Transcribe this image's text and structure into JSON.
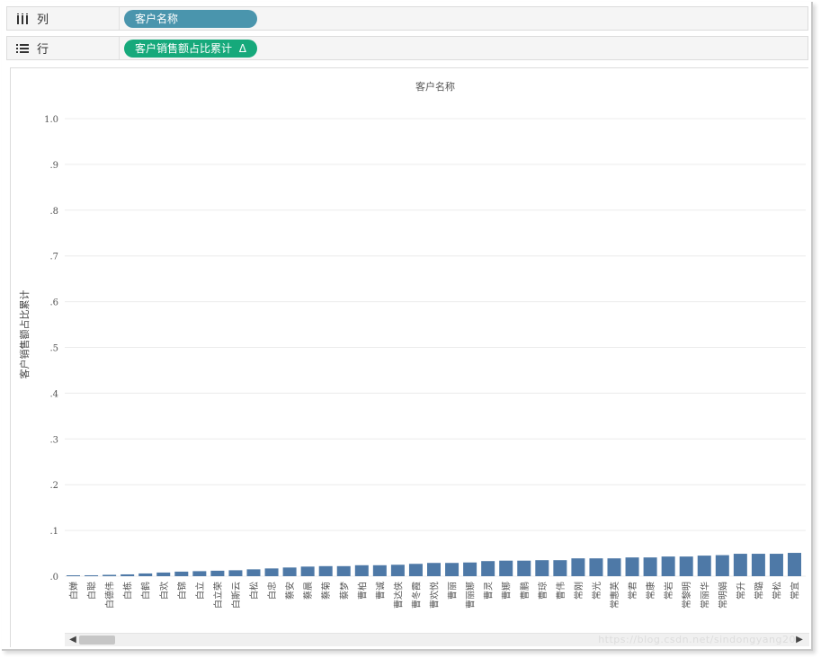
{
  "shelves": {
    "columns": {
      "label": "列",
      "icon": "columns-icon",
      "pill": "客户名称",
      "pill_color": "#4a95ad"
    },
    "rows": {
      "label": "行",
      "icon": "rows-icon",
      "pill": "客户销售额占比累计",
      "pill_color": "#16a97b",
      "pill_flag": "Δ"
    }
  },
  "watermark": "https://blog.csdn.net/sindongyang20",
  "chart_data": {
    "type": "bar",
    "title": "客户名称",
    "xlabel": "",
    "ylabel": "客户销售额占比累计",
    "ylim": [
      0,
      1.0
    ],
    "yticks": [
      {
        "value": 1.0,
        "label": "1.0"
      },
      {
        "value": 0.9,
        "label": ".9"
      },
      {
        "value": 0.8,
        "label": ".8"
      },
      {
        "value": 0.7,
        "label": ".7"
      },
      {
        "value": 0.6,
        "label": ".6"
      },
      {
        "value": 0.5,
        "label": ".5"
      },
      {
        "value": 0.4,
        "label": ".4"
      },
      {
        "value": 0.3,
        "label": ".3"
      },
      {
        "value": 0.2,
        "label": ".2"
      },
      {
        "value": 0.1,
        "label": ".1"
      },
      {
        "value": 0.0,
        "label": ".0"
      }
    ],
    "bar_color": "#4e79a7",
    "grid": true,
    "categories": [
      "白婵",
      "白聪",
      "白德伟",
      "白栋",
      "白鹤",
      "白欢",
      "白锦",
      "白立",
      "白立荣",
      "白斯云",
      "白松",
      "白忠",
      "蔡安",
      "蔡晨",
      "蔡菊",
      "蔡梦",
      "曹柏",
      "曹诚",
      "曹达侠",
      "曹冬霞",
      "曹欢悦",
      "曹丽",
      "曹丽娜",
      "曹灵",
      "曹娜",
      "曹鹏",
      "曹琼",
      "曹伟",
      "常刚",
      "常光",
      "常惠英",
      "常君",
      "常康",
      "常岩",
      "常黎明",
      "常丽华",
      "常明娟",
      "常升",
      "常璐",
      "常松",
      "常宜"
    ],
    "values": [
      0.001,
      0.002,
      0.003,
      0.004,
      0.006,
      0.008,
      0.01,
      0.011,
      0.012,
      0.013,
      0.015,
      0.017,
      0.019,
      0.021,
      0.022,
      0.022,
      0.024,
      0.024,
      0.025,
      0.027,
      0.029,
      0.029,
      0.03,
      0.033,
      0.034,
      0.034,
      0.035,
      0.035,
      0.039,
      0.039,
      0.039,
      0.041,
      0.041,
      0.043,
      0.043,
      0.045,
      0.046,
      0.049,
      0.049,
      0.049,
      0.051
    ]
  }
}
